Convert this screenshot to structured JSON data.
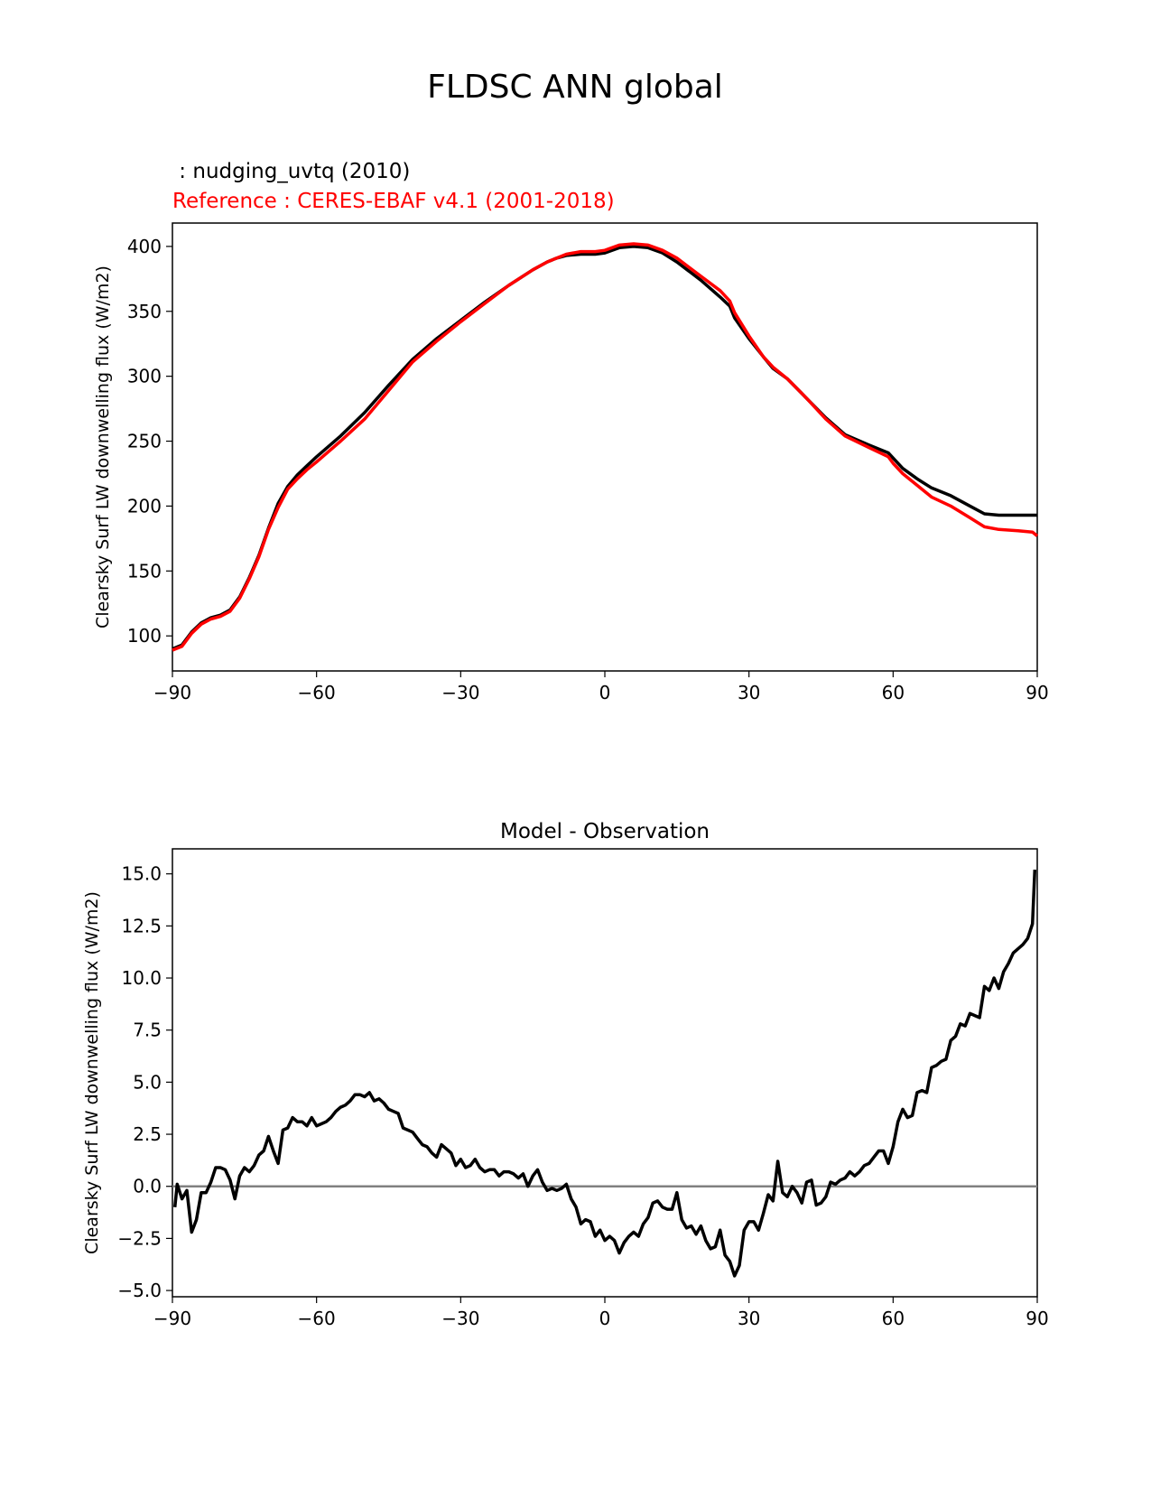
{
  "figure": {
    "title": "FLDSC ANN global",
    "test_label": " : nudging_uvtq (2010)",
    "ref_label": "Reference : CERES-EBAF v4.1 (2001-2018)",
    "colors": {
      "test": "#000000",
      "reference": "#ff0000",
      "zero_line": "#808080",
      "axes": "#000000"
    }
  },
  "chart_data": [
    {
      "type": "line",
      "title": "",
      "xlabel": "",
      "ylabel": "Clearsky Surf LW downwelling flux (W/m2)",
      "xlim": [
        -90,
        90
      ],
      "ylim": [
        73,
        418
      ],
      "xticks": [
        -90,
        -60,
        -30,
        0,
        30,
        60,
        90
      ],
      "xtick_labels": [
        "−90",
        "−60",
        "−30",
        "0",
        "30",
        "60",
        "90"
      ],
      "yticks": [
        100,
        150,
        200,
        250,
        300,
        350,
        400
      ],
      "ytick_labels": [
        "100",
        "150",
        "200",
        "250",
        "300",
        "350",
        "400"
      ],
      "grid": false,
      "series": [
        {
          "key": "test",
          "x": [
            -90,
            -88,
            -86,
            -84,
            -82,
            -80,
            -78,
            -76,
            -74,
            -72,
            -70,
            -68,
            -66,
            -64,
            -62,
            -60,
            -55,
            -50,
            -45,
            -40,
            -35,
            -30,
            -25,
            -20,
            -15,
            -12,
            -10,
            -8,
            -5,
            -2,
            0,
            3,
            6,
            9,
            12,
            15,
            20,
            24,
            26,
            27,
            30,
            33,
            35,
            38,
            42,
            46,
            50,
            55,
            59,
            60,
            62,
            65,
            68,
            72,
            76,
            79,
            82,
            86,
            90
          ],
          "y": [
            90,
            93,
            103,
            110,
            114,
            116,
            120,
            130,
            145,
            162,
            183,
            202,
            215,
            224,
            231,
            238,
            254,
            272,
            293,
            313,
            329,
            343,
            357,
            370,
            382,
            388,
            391,
            393,
            394,
            394,
            395,
            399,
            400,
            399,
            395,
            388,
            374,
            361,
            354,
            345,
            329,
            315,
            306,
            298,
            283,
            268,
            255,
            247,
            241,
            237,
            229,
            221,
            214,
            208,
            200,
            194,
            193,
            193,
            193
          ]
        },
        {
          "key": "reference",
          "x": [
            -90,
            -88,
            -86,
            -84,
            -82,
            -80,
            -78,
            -76,
            -74,
            -72,
            -70,
            -68,
            -66,
            -64,
            -62,
            -60,
            -55,
            -50,
            -45,
            -40,
            -35,
            -30,
            -25,
            -20,
            -15,
            -12,
            -10,
            -8,
            -5,
            -2,
            0,
            3,
            6,
            9,
            12,
            15,
            20,
            24,
            26,
            27,
            30,
            33,
            35,
            38,
            42,
            46,
            50,
            55,
            59,
            60,
            62,
            65,
            68,
            72,
            76,
            79,
            82,
            86,
            89,
            90
          ],
          "y": [
            89,
            92,
            102,
            109,
            113,
            115,
            119,
            129,
            144,
            161,
            182,
            199,
            213,
            221,
            228,
            234,
            250,
            267,
            289,
            311,
            327,
            342,
            356,
            370,
            382,
            388,
            391,
            394,
            396,
            396,
            397,
            401,
            402,
            401,
            397,
            391,
            377,
            366,
            358,
            349,
            331,
            315,
            307,
            298,
            283,
            267,
            254,
            245,
            238,
            233,
            225,
            216,
            207,
            200,
            191,
            184,
            182,
            181,
            180,
            177
          ]
        }
      ]
    },
    {
      "type": "line",
      "title": "Model - Observation",
      "xlabel": "",
      "ylabel": "Clearsky Surf LW downwelling flux (W/m2)",
      "xlim": [
        -90,
        90
      ],
      "ylim": [
        -5.3,
        16.2
      ],
      "xticks": [
        -90,
        -60,
        -30,
        0,
        30,
        60,
        90
      ],
      "xtick_labels": [
        "−90",
        "−60",
        "−30",
        "0",
        "30",
        "60",
        "90"
      ],
      "yticks": [
        -5,
        -2.5,
        0,
        2.5,
        5,
        7.5,
        10,
        12.5,
        15
      ],
      "ytick_labels": [
        "−5.0",
        "−2.5",
        "0.0",
        "2.5",
        "5.0",
        "7.5",
        "10.0",
        "12.5",
        "15.0"
      ],
      "zero_line": 0,
      "grid": false,
      "series": [
        {
          "key": "difference",
          "x": [
            -89.5,
            -89,
            -88,
            -87,
            -86,
            -85,
            -84,
            -83,
            -82,
            -81,
            -80,
            -79,
            -78,
            -77,
            -76,
            -75,
            -74,
            -73,
            -72,
            -71,
            -70,
            -69,
            -68,
            -67,
            -66,
            -65,
            -64,
            -63,
            -62,
            -61,
            -60,
            -59,
            -58,
            -57,
            -56,
            -55,
            -54,
            -53,
            -52,
            -51,
            -50,
            -49,
            -48,
            -47,
            -46,
            -45,
            -44,
            -43,
            -42,
            -41,
            -40,
            -39,
            -38,
            -37,
            -36,
            -35,
            -34,
            -33,
            -32,
            -31,
            -30,
            -29,
            -28,
            -27,
            -26,
            -25,
            -24,
            -23,
            -22,
            -21,
            -20,
            -19,
            -18,
            -17,
            -16,
            -15,
            -14,
            -13,
            -12,
            -11,
            -10,
            -9,
            -8,
            -7,
            -6,
            -5,
            -4,
            -3,
            -2,
            -1,
            0,
            1,
            2,
            3,
            4,
            5,
            6,
            7,
            8,
            9,
            10,
            11,
            12,
            13,
            14,
            15,
            16,
            17,
            18,
            19,
            20,
            21,
            22,
            23,
            24,
            25,
            26,
            27,
            28,
            29,
            30,
            31,
            32,
            33,
            34,
            35,
            36,
            37,
            38,
            39,
            40,
            41,
            42,
            43,
            44,
            45,
            46,
            47,
            48,
            49,
            50,
            51,
            52,
            53,
            54,
            55,
            56,
            57,
            58,
            59,
            60,
            61,
            62,
            63,
            64,
            65,
            66,
            67,
            68,
            69,
            70,
            71,
            72,
            73,
            74,
            75,
            76,
            77,
            78,
            79,
            80,
            81,
            82,
            83,
            84,
            85,
            86,
            87,
            88,
            89,
            89.5
          ],
          "y": [
            -1.0,
            0.1,
            -0.6,
            -0.2,
            -2.2,
            -1.6,
            -0.3,
            -0.3,
            0.2,
            0.9,
            0.9,
            0.8,
            0.3,
            -0.6,
            0.5,
            0.9,
            0.7,
            1.0,
            1.5,
            1.7,
            2.4,
            1.7,
            1.1,
            2.7,
            2.8,
            3.3,
            3.1,
            3.1,
            2.9,
            3.3,
            2.9,
            3.0,
            3.1,
            3.3,
            3.6,
            3.8,
            3.9,
            4.1,
            4.4,
            4.4,
            4.3,
            4.5,
            4.1,
            4.2,
            4.0,
            3.7,
            3.6,
            3.5,
            2.8,
            2.7,
            2.6,
            2.3,
            2.0,
            1.9,
            1.6,
            1.4,
            2.0,
            1.8,
            1.6,
            1.0,
            1.3,
            0.9,
            1.0,
            1.3,
            0.9,
            0.7,
            0.8,
            0.8,
            0.5,
            0.7,
            0.7,
            0.6,
            0.4,
            0.6,
            0.0,
            0.5,
            0.8,
            0.2,
            -0.2,
            -0.1,
            -0.2,
            -0.1,
            0.1,
            -0.6,
            -1.0,
            -1.8,
            -1.6,
            -1.7,
            -2.4,
            -2.1,
            -2.6,
            -2.4,
            -2.6,
            -3.2,
            -2.7,
            -2.4,
            -2.2,
            -2.4,
            -1.8,
            -1.5,
            -0.8,
            -0.7,
            -1.0,
            -1.1,
            -1.1,
            -0.3,
            -1.6,
            -2.0,
            -1.9,
            -2.3,
            -1.9,
            -2.6,
            -3.0,
            -2.9,
            -2.1,
            -3.3,
            -3.6,
            -4.3,
            -3.8,
            -2.1,
            -1.7,
            -1.7,
            -2.1,
            -1.3,
            -0.4,
            -0.7,
            1.2,
            -0.3,
            -0.5,
            0.0,
            -0.3,
            -0.8,
            0.2,
            0.3,
            -0.9,
            -0.8,
            -0.5,
            0.2,
            0.1,
            0.3,
            0.4,
            0.7,
            0.5,
            0.7,
            1.0,
            1.1,
            1.4,
            1.7,
            1.7,
            1.1,
            1.9,
            3.1,
            3.7,
            3.3,
            3.4,
            4.5,
            4.6,
            4.5,
            5.7,
            5.8,
            6.0,
            6.1,
            7.0,
            7.2,
            7.8,
            7.7,
            8.3,
            8.2,
            8.1,
            9.6,
            9.4,
            10.0,
            9.5,
            10.3,
            10.7,
            11.2,
            11.4,
            11.6,
            11.9,
            12.6,
            15.2
          ]
        }
      ]
    }
  ]
}
